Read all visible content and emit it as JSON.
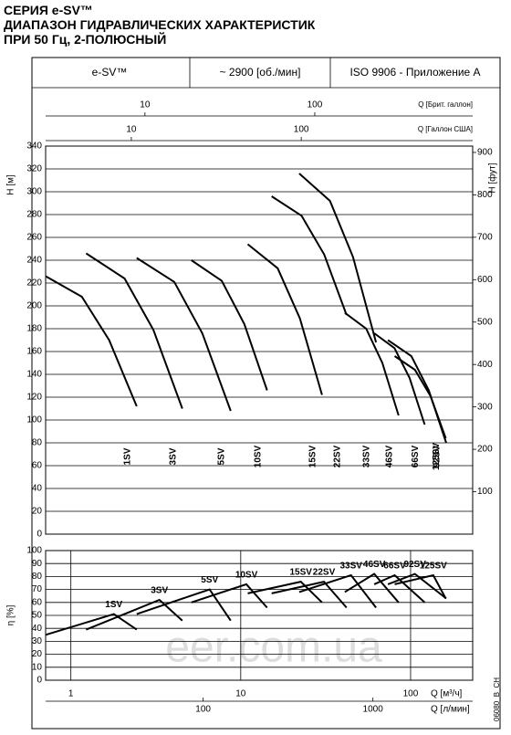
{
  "header": {
    "title": [
      "СЕРИЯ e-SV™",
      "ДИАПАЗОН ГИДРАВЛИЧЕСКИХ ХАРАКТЕРИСТИК",
      "ПРИ 50 Гц, 2-ПОЛЮСНЫЙ"
    ],
    "info": [
      "e-SV™",
      "~ 2900 [об./мин]",
      "ISO 9906 - Приложение A"
    ]
  },
  "code": "06080_B_CH",
  "watermark": "eer.com.ua",
  "chart_data": [
    {
      "type": "line",
      "log_x": true,
      "grid": true,
      "y_label": "H [м]",
      "y2_label": "H [фут]",
      "xlim": [
        0.71,
        232
      ],
      "ylim": [
        0,
        340
      ],
      "yticks": [
        0,
        20,
        40,
        60,
        80,
        100,
        120,
        140,
        160,
        180,
        200,
        220,
        240,
        260,
        280,
        300,
        320,
        340
      ],
      "y2lim": [
        0,
        915
      ],
      "y2ticks": [
        100,
        200,
        300,
        400,
        500,
        600,
        700,
        800,
        900
      ],
      "top_axes": [
        {
          "label": "Q [Брит. галлон]",
          "xlim": [
            2.6,
            851
          ],
          "xticks": [
            10,
            100
          ]
        },
        {
          "label": "Q [Галлон США]",
          "xlim": [
            3.13,
            1021
          ],
          "xticks": [
            10,
            100
          ]
        }
      ],
      "series": [
        {
          "name": "1SV",
          "color": "#000000",
          "x": [
            0.71,
            1.16,
            1.68,
            2.44
          ],
          "values": [
            226,
            208,
            170,
            112
          ]
        },
        {
          "name": "3SV",
          "color": "#000000",
          "x": [
            1.23,
            2.07,
            3.06,
            4.53
          ],
          "values": [
            246,
            224,
            179,
            110
          ]
        },
        {
          "name": "5SV",
          "color": "#000000",
          "x": [
            2.44,
            4.06,
            5.94,
            8.72
          ],
          "values": [
            242,
            221,
            176,
            108
          ]
        },
        {
          "name": "10SV",
          "color": "#000000",
          "x": [
            5.12,
            7.73,
            10.5,
            14.3
          ],
          "values": [
            240,
            222,
            184,
            126
          ]
        },
        {
          "name": "15SV",
          "color": "#000000",
          "x": [
            11.0,
            16.5,
            22.3,
            30.1
          ],
          "values": [
            254,
            233,
            189,
            122
          ]
        },
        {
          "name": "22SV",
          "color": "#000000",
          "x": [
            15.2,
            22.8,
            31.0,
            42
          ],
          "values": [
            296,
            279,
            245,
            192
          ]
        },
        {
          "name": "33SV",
          "color": "#000000",
          "x": [
            22.1,
            33.5,
            45.8,
            62.6
          ],
          "values": [
            316,
            292,
            243,
            168
          ]
        },
        {
          "name": "46SV",
          "color": "#000000",
          "x": [
            41,
            54.8,
            68.2,
            85
          ],
          "values": [
            194,
            180,
            150,
            104
          ]
        },
        {
          "name": "66SV",
          "color": "#000000",
          "x": [
            61.1,
            80.4,
            98.6,
            121
          ],
          "values": [
            176,
            163,
            137,
            96
          ]
        },
        {
          "name": "92SV",
          "color": "#000000",
          "x": [
            73.5,
            101,
            128,
            162
          ],
          "values": [
            170,
            156,
            126,
            80
          ]
        },
        {
          "name": "125SV",
          "color": "#000000",
          "x": [
            80.6,
            106,
            131,
            161
          ],
          "values": [
            156,
            144,
            121,
            84
          ]
        }
      ]
    },
    {
      "type": "line",
      "log_x": true,
      "grid": true,
      "y_label": "η [%]",
      "x_label": "Q [м³/ч]",
      "xlim": [
        0.71,
        232
      ],
      "xticks": [
        1,
        10,
        100
      ],
      "ylim": [
        0,
        100
      ],
      "yticks": [
        0,
        10,
        20,
        30,
        40,
        50,
        60,
        70,
        80,
        90,
        100
      ],
      "bottom_axis2": {
        "label": "Q [л/мин]",
        "xlim": [
          11.8,
          3870
        ],
        "xticks": [
          100,
          1000
        ]
      },
      "series": [
        {
          "name": "1SV",
          "color": "#000000",
          "x": [
            0.71,
            1.79,
            2.44
          ],
          "values": [
            35,
            51,
            39
          ]
        },
        {
          "name": "3SV",
          "color": "#000000",
          "x": [
            1.23,
            3.32,
            4.53
          ],
          "values": [
            39,
            62,
            46
          ]
        },
        {
          "name": "5SV",
          "color": "#000000",
          "x": [
            2.44,
            6.56,
            8.72
          ],
          "values": [
            51,
            70,
            46
          ]
        },
        {
          "name": "10SV",
          "color": "#000000",
          "x": [
            5.12,
            10.8,
            14.3
          ],
          "values": [
            60,
            74,
            56
          ]
        },
        {
          "name": "15SV",
          "color": "#000000",
          "x": [
            11.0,
            22.6,
            30.1
          ],
          "values": [
            67,
            76,
            60
          ]
        },
        {
          "name": "22SV",
          "color": "#000000",
          "x": [
            15.2,
            30.9,
            42
          ],
          "values": [
            67,
            76,
            56
          ]
        },
        {
          "name": "33SV",
          "color": "#000000",
          "x": [
            22.1,
            44.6,
            62.6
          ],
          "values": [
            68,
            81,
            56
          ]
        },
        {
          "name": "46SV",
          "color": "#000000",
          "x": [
            41,
            61.1,
            85
          ],
          "values": [
            68,
            82,
            60
          ]
        },
        {
          "name": "66SV",
          "color": "#000000",
          "x": [
            61.1,
            80.6,
            121
          ],
          "values": [
            74,
            81,
            60
          ]
        },
        {
          "name": "92SV",
          "color": "#000000",
          "x": [
            73.5,
            106,
            162
          ],
          "values": [
            74,
            82,
            63
          ]
        },
        {
          "name": "125SV",
          "color": "#000000",
          "x": [
            80.6,
            136,
            161
          ],
          "values": [
            74,
            81,
            63
          ]
        }
      ]
    }
  ]
}
